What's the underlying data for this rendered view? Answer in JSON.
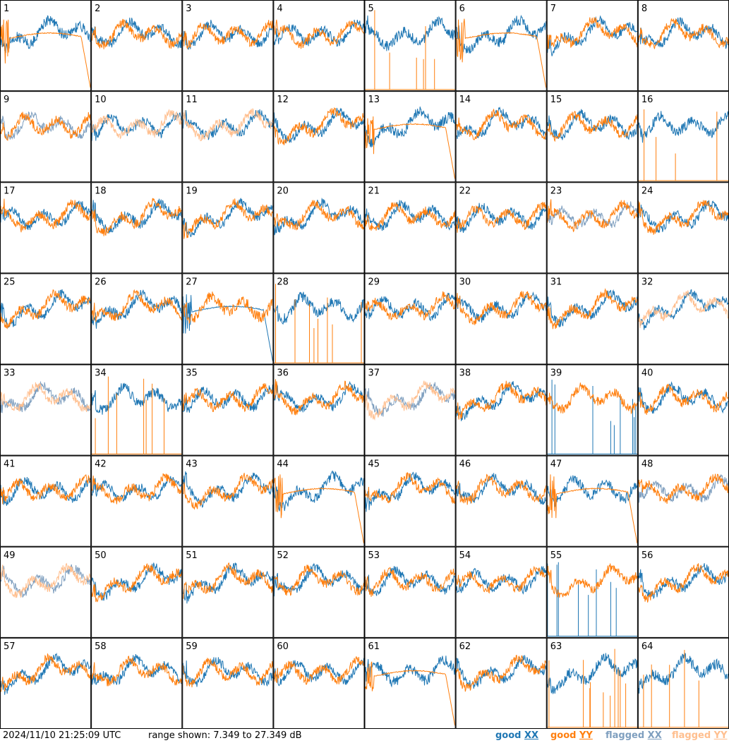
{
  "chart_data": {
    "type": "line",
    "panel_count": 64,
    "columns": 8,
    "rows": 8,
    "panel_labels": [
      "1",
      "2",
      "3",
      "4",
      "5",
      "6",
      "7",
      "8",
      "9",
      "10",
      "11",
      "12",
      "13",
      "14",
      "15",
      "16",
      "17",
      "18",
      "19",
      "20",
      "21",
      "22",
      "23",
      "24",
      "25",
      "26",
      "27",
      "28",
      "29",
      "30",
      "31",
      "32",
      "33",
      "34",
      "35",
      "36",
      "37",
      "38",
      "39",
      "40",
      "41",
      "42",
      "43",
      "44",
      "45",
      "46",
      "47",
      "48",
      "49",
      "50",
      "51",
      "52",
      "53",
      "54",
      "55",
      "56",
      "57",
      "58",
      "59",
      "60",
      "61",
      "62",
      "63",
      "64"
    ],
    "ylim": [
      7.349,
      27.349
    ],
    "y_unit": "dB",
    "grid": false,
    "legend_position": "bottom-right",
    "series_styles": [
      {
        "name": "good XX",
        "color": "#1f77b4"
      },
      {
        "name": "good YY",
        "color": "#ff7f0e"
      },
      {
        "name": "flagged XX",
        "color": "#7f9fbf"
      },
      {
        "name": "flagged YY",
        "color": "#ffbf8f"
      }
    ],
    "panel_patterns": {
      "normal": [
        2,
        3,
        4,
        7,
        12,
        14,
        15,
        17,
        18,
        19,
        20,
        21,
        22,
        24,
        25,
        26,
        29,
        30,
        31,
        35,
        36,
        38,
        40,
        41,
        42,
        43,
        45,
        46,
        50,
        51,
        52,
        53,
        54,
        56,
        57,
        58,
        59,
        60,
        62
      ],
      "yy_flat_tail": [
        1,
        6,
        13,
        44,
        47,
        61
      ],
      "xx_flat_mid": [
        27
      ],
      "yy_spikes_only": [
        5,
        16,
        28,
        34,
        63,
        64
      ],
      "xx_spikes_only": [
        39,
        55
      ],
      "flagged_xx": [
        9,
        23,
        48,
        49,
        33,
        37
      ],
      "flagged_yy": [
        10,
        11,
        32,
        33,
        37,
        49
      ]
    }
  },
  "footer": {
    "timestamp": "2024/11/10 21:25:09 UTC",
    "range_text": "range shown: 7.349 to 27.349 dB",
    "legend": {
      "good_xx_prefix": "good ",
      "good_xx_pol": "XX",
      "good_yy_prefix": "good ",
      "good_yy_pol": "YY",
      "flagged_xx_prefix": "flagged ",
      "flagged_xx_pol": "XX",
      "flagged_yy_prefix": "flagged ",
      "flagged_yy_pol": "YY"
    },
    "colors": {
      "good_xx": "#1f77b4",
      "good_yy": "#ff7f0e",
      "flagged_xx": "#7f9fbf",
      "flagged_yy": "#ffbf8f"
    }
  }
}
